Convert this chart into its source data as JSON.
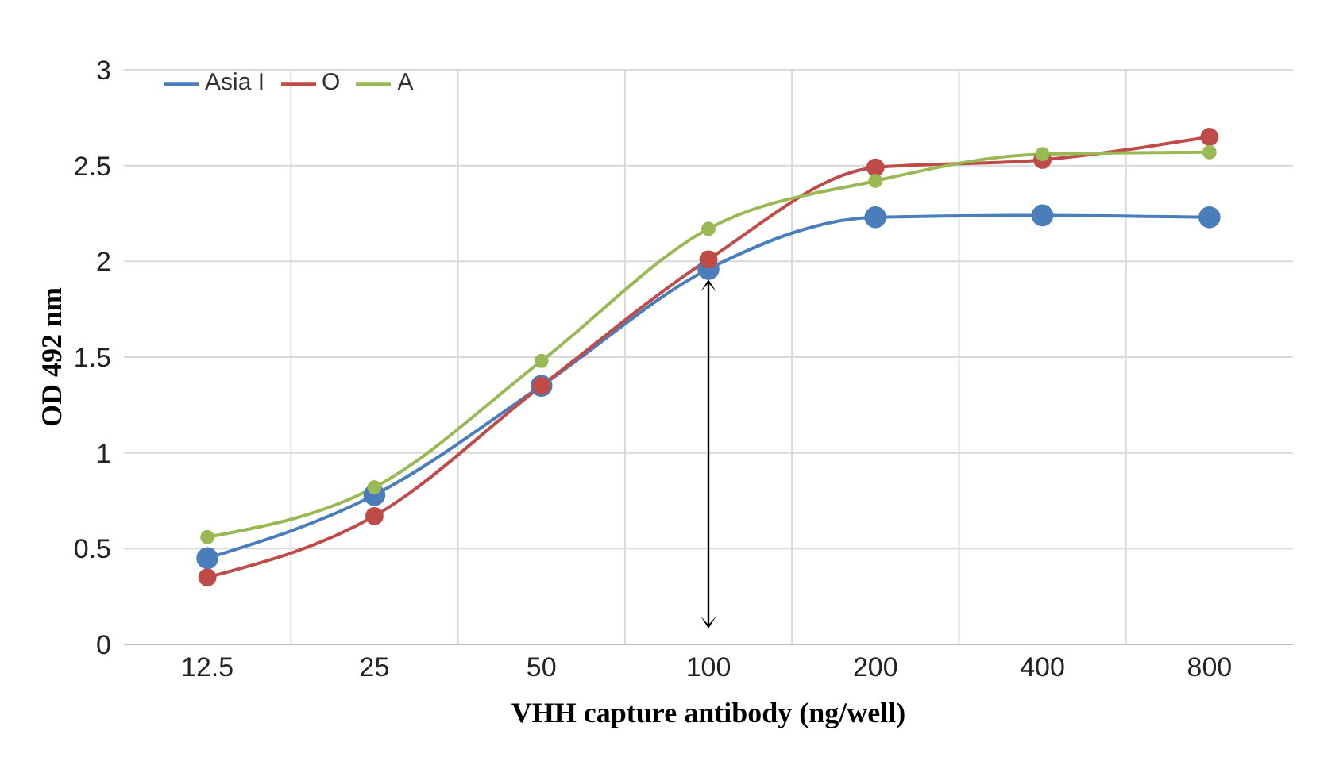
{
  "chart_data": {
    "type": "line",
    "xlabel": "VHH capture antibody (ng/well)",
    "ylabel": "OD 492 nm",
    "categories": [
      "12.5",
      "25",
      "50",
      "100",
      "200",
      "400",
      "800"
    ],
    "series": [
      {
        "name": "Asia I",
        "color": "#4a7ebb",
        "values": [
          0.45,
          0.78,
          1.35,
          1.96,
          2.23,
          2.24,
          2.23
        ]
      },
      {
        "name": "O",
        "color": "#be4b48",
        "values": [
          0.35,
          0.67,
          1.35,
          2.01,
          2.49,
          2.53,
          2.65
        ]
      },
      {
        "name": "A",
        "color": "#98b954",
        "values": [
          0.56,
          0.82,
          1.48,
          2.17,
          2.42,
          2.56,
          2.57
        ]
      }
    ],
    "ylim": [
      0,
      3
    ],
    "yticks": [
      0,
      0.5,
      1,
      1.5,
      2,
      2.5,
      3
    ],
    "grid": true,
    "legend": "top left",
    "marker": "circle",
    "line_style": "solid"
  }
}
